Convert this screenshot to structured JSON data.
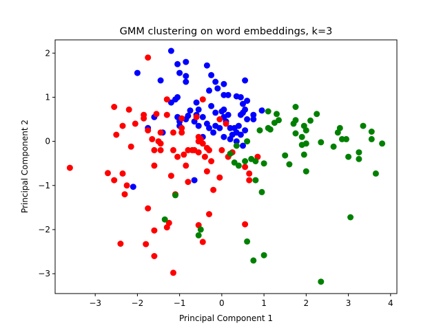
{
  "chart_data": {
    "type": "scatter",
    "title": "GMM clustering on word embeddings, k=3",
    "xlabel": "Principal Component 1",
    "ylabel": "Principal Component 2",
    "xlim": [
      -3.95,
      4.15
    ],
    "ylim": [
      -3.45,
      2.3
    ],
    "xticks": [
      -3,
      -2,
      -1,
      0,
      1,
      2,
      3,
      4
    ],
    "yticks": [
      -3,
      -2,
      -1,
      0,
      1,
      2
    ],
    "grid": false,
    "legend": "none",
    "series": [
      {
        "color": "#0000ff",
        "points": [
          [
            -1.2,
            2.05
          ],
          [
            -0.85,
            1.8
          ],
          [
            -1.05,
            1.75
          ],
          [
            -2.0,
            1.55
          ],
          [
            -1.0,
            1.55
          ],
          [
            -0.85,
            1.48
          ],
          [
            -1.45,
            1.38
          ],
          [
            -0.85,
            1.35
          ],
          [
            -0.35,
            1.72
          ],
          [
            -0.25,
            1.5
          ],
          [
            -0.15,
            1.35
          ],
          [
            -0.3,
            1.15
          ],
          [
            0.05,
            1.3
          ],
          [
            0.55,
            1.38
          ],
          [
            0.05,
            1.05
          ],
          [
            0.15,
            1.05
          ],
          [
            -0.1,
            1.2
          ],
          [
            0.35,
            1.02
          ],
          [
            0.45,
            1.0
          ],
          [
            0.5,
            0.85
          ],
          [
            0.6,
            0.92
          ],
          [
            -0.6,
            0.88
          ],
          [
            -1.1,
            0.95
          ],
          [
            -1.05,
            1.0
          ],
          [
            -1.2,
            0.88
          ],
          [
            -0.55,
            0.72
          ],
          [
            -0.75,
            0.7
          ],
          [
            -0.6,
            0.6
          ],
          [
            -0.45,
            0.55
          ],
          [
            -0.25,
            0.8
          ],
          [
            -0.15,
            0.65
          ],
          [
            0.0,
            0.68
          ],
          [
            0.05,
            0.72
          ],
          [
            -0.8,
            0.58
          ],
          [
            -1.05,
            0.55
          ],
          [
            -0.85,
            0.5
          ],
          [
            -1.0,
            0.45
          ],
          [
            -0.65,
            0.45
          ],
          [
            -0.55,
            0.35
          ],
          [
            -0.35,
            0.4
          ],
          [
            -0.3,
            0.3
          ],
          [
            -0.2,
            0.2
          ],
          [
            -0.45,
            0.1
          ],
          [
            0.05,
            0.55
          ],
          [
            0.15,
            0.6
          ],
          [
            0.1,
            0.45
          ],
          [
            -0.15,
            0.35
          ],
          [
            -0.05,
            0.3
          ],
          [
            0.2,
            0.3
          ],
          [
            0.3,
            0.3
          ],
          [
            0.4,
            0.35
          ],
          [
            0.5,
            0.65
          ],
          [
            0.55,
            0.72
          ],
          [
            0.45,
            0.6
          ],
          [
            0.6,
            0.5
          ],
          [
            0.75,
            0.6
          ],
          [
            0.75,
            0.5
          ],
          [
            0.95,
            0.7
          ],
          [
            0.35,
            0.2
          ],
          [
            0.25,
            0.15
          ],
          [
            0.45,
            0.15
          ],
          [
            0.2,
            0.05
          ],
          [
            0.05,
            0.1
          ],
          [
            0.35,
            0.0
          ],
          [
            0.5,
            -0.1
          ],
          [
            0.55,
            0.25
          ],
          [
            -1.75,
            0.3
          ],
          [
            -1.4,
            0.2
          ],
          [
            -1.6,
            0.55
          ],
          [
            -0.65,
            -0.88
          ],
          [
            -2.1,
            -1.03
          ],
          [
            -1.0,
            0.35
          ]
        ]
      },
      {
        "color": "#ff0000",
        "points": [
          [
            -1.75,
            1.9
          ],
          [
            -0.95,
            0.52
          ],
          [
            -1.3,
            0.95
          ],
          [
            -2.2,
            0.72
          ],
          [
            -2.55,
            0.78
          ],
          [
            -1.85,
            0.6
          ],
          [
            -1.55,
            0.62
          ],
          [
            -1.3,
            0.6
          ],
          [
            -1.85,
            0.52
          ],
          [
            -2.05,
            0.4
          ],
          [
            -2.35,
            0.35
          ],
          [
            -2.5,
            0.15
          ],
          [
            -1.75,
            0.25
          ],
          [
            -1.45,
            0.2
          ],
          [
            -1.15,
            0.2
          ],
          [
            -0.95,
            0.2
          ],
          [
            -0.95,
            0.3
          ],
          [
            -1.65,
            0.05
          ],
          [
            -1.5,
            0.0
          ],
          [
            -1.45,
            -0.05
          ],
          [
            -1.6,
            -0.2
          ],
          [
            -1.45,
            -0.2
          ],
          [
            -1.15,
            -0.2
          ],
          [
            -1.05,
            -0.35
          ],
          [
            -0.9,
            -0.3
          ],
          [
            -0.8,
            -0.2
          ],
          [
            -0.65,
            -0.2
          ],
          [
            -0.55,
            0.0
          ],
          [
            -0.5,
            0.05
          ],
          [
            -0.55,
            0.1
          ],
          [
            -0.45,
            -0.05
          ],
          [
            -0.35,
            -0.15
          ],
          [
            -0.3,
            -0.2
          ],
          [
            -0.4,
            -0.35
          ],
          [
            -0.25,
            -0.45
          ],
          [
            -0.55,
            -0.25
          ],
          [
            -0.7,
            -0.2
          ],
          [
            -0.85,
            -0.55
          ],
          [
            -0.6,
            0.55
          ],
          [
            -0.45,
            0.95
          ],
          [
            -0.05,
            0.5
          ],
          [
            0.1,
            0.4
          ],
          [
            0.0,
            -0.2
          ],
          [
            0.15,
            -0.35
          ],
          [
            0.25,
            -0.25
          ],
          [
            0.55,
            -0.58
          ],
          [
            0.65,
            -0.73
          ],
          [
            0.65,
            -0.88
          ],
          [
            0.85,
            -0.35
          ],
          [
            -0.05,
            -0.82
          ],
          [
            -0.2,
            -1.1
          ],
          [
            -0.35,
            -0.68
          ],
          [
            -2.15,
            -0.12
          ],
          [
            -1.6,
            -0.55
          ],
          [
            -2.7,
            -0.72
          ],
          [
            -2.35,
            -0.73
          ],
          [
            -3.6,
            -0.6
          ],
          [
            -2.55,
            -0.88
          ],
          [
            -2.25,
            -1.0
          ],
          [
            -2.3,
            -1.2
          ],
          [
            -1.2,
            -0.78
          ],
          [
            -0.8,
            -0.92
          ],
          [
            -1.1,
            -1.2
          ],
          [
            -1.75,
            -1.52
          ],
          [
            -1.25,
            -1.85
          ],
          [
            -1.3,
            -1.95
          ],
          [
            -1.6,
            -2.02
          ],
          [
            -0.55,
            -1.9
          ],
          [
            -0.3,
            -1.65
          ],
          [
            -0.45,
            -2.28
          ],
          [
            -1.8,
            -2.33
          ],
          [
            -1.6,
            -2.6
          ],
          [
            -2.4,
            -2.32
          ],
          [
            -1.15,
            -2.98
          ],
          [
            0.55,
            -1.88
          ]
        ]
      },
      {
        "color": "#008000",
        "points": [
          [
            1.1,
            0.68
          ],
          [
            1.3,
            0.62
          ],
          [
            1.25,
            0.42
          ],
          [
            1.35,
            0.48
          ],
          [
            1.75,
            0.78
          ],
          [
            1.75,
            0.48
          ],
          [
            1.7,
            0.4
          ],
          [
            2.0,
            0.25
          ],
          [
            1.95,
            0.35
          ],
          [
            2.1,
            0.47
          ],
          [
            2.25,
            0.62
          ],
          [
            1.75,
            0.18
          ],
          [
            1.9,
            0.1
          ],
          [
            1.9,
            -0.08
          ],
          [
            2.0,
            -0.05
          ],
          [
            2.35,
            -0.02
          ],
          [
            1.95,
            -0.3
          ],
          [
            2.65,
            -0.12
          ],
          [
            2.75,
            0.2
          ],
          [
            2.8,
            0.3
          ],
          [
            2.85,
            0.05
          ],
          [
            2.95,
            0.05
          ],
          [
            3.0,
            -0.35
          ],
          [
            3.25,
            -0.25
          ],
          [
            3.25,
            -0.4
          ],
          [
            3.35,
            0.35
          ],
          [
            3.55,
            0.22
          ],
          [
            3.55,
            0.05
          ],
          [
            3.8,
            -0.05
          ],
          [
            3.65,
            -0.73
          ],
          [
            1.5,
            -0.32
          ],
          [
            1.6,
            -0.52
          ],
          [
            2.0,
            -0.68
          ],
          [
            0.9,
            0.25
          ],
          [
            1.1,
            0.3
          ],
          [
            1.15,
            0.27
          ],
          [
            0.8,
            -0.45
          ],
          [
            1.0,
            -0.5
          ],
          [
            0.8,
            -0.88
          ],
          [
            0.95,
            -1.15
          ],
          [
            0.6,
            0.0
          ],
          [
            0.7,
            -0.4
          ],
          [
            0.55,
            -0.45
          ],
          [
            0.4,
            -0.55
          ],
          [
            0.3,
            -0.48
          ],
          [
            0.35,
            -0.1
          ],
          [
            0.2,
            -0.28
          ],
          [
            3.05,
            -1.72
          ],
          [
            -1.1,
            -1.22
          ],
          [
            -1.35,
            -1.77
          ],
          [
            -0.5,
            -2.0
          ],
          [
            -0.55,
            -2.13
          ],
          [
            0.6,
            -2.27
          ],
          [
            0.75,
            -2.7
          ],
          [
            1.0,
            -2.58
          ],
          [
            2.35,
            -3.18
          ]
        ]
      }
    ]
  }
}
